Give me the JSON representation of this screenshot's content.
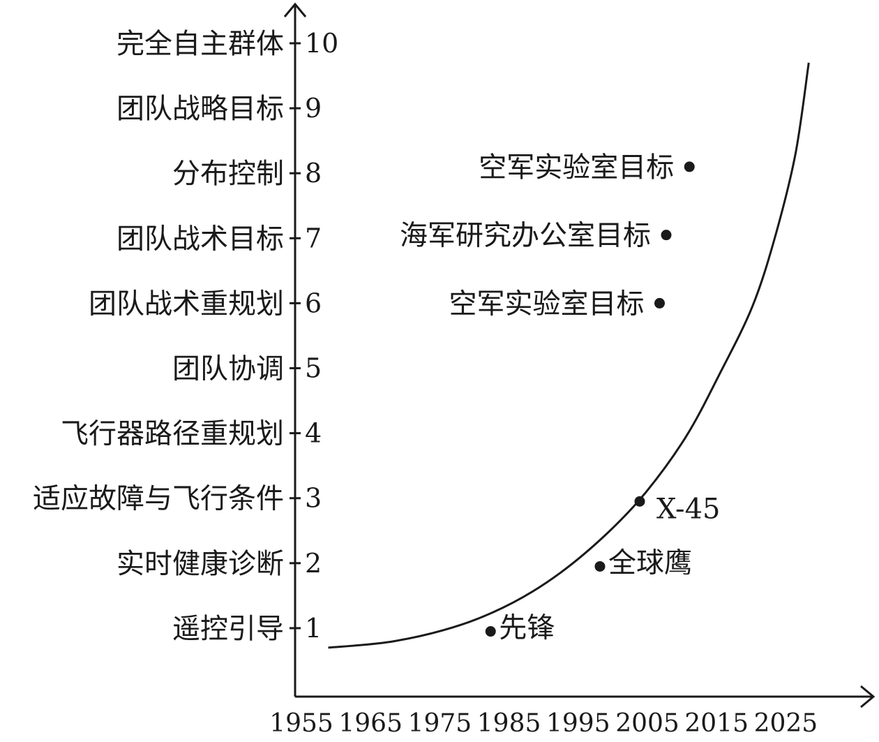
{
  "chart_data": {
    "type": "scatter",
    "title": "",
    "xlabel": "",
    "ylabel": "",
    "xlim": [
      1955,
      2035
    ],
    "ylim": [
      0,
      10
    ],
    "x_ticks": [
      "1955",
      "1965",
      "1975",
      "1985",
      "1995",
      "2005",
      "2015",
      "2025"
    ],
    "y_ticks": [
      {
        "value": 1,
        "tick": "1",
        "label": "遥控引导"
      },
      {
        "value": 2,
        "tick": "2",
        "label": "实时健康诊断"
      },
      {
        "value": 3,
        "tick": "3",
        "label": "适应故障与飞行条件"
      },
      {
        "value": 4,
        "tick": "4",
        "label": "飞行器路径重规划"
      },
      {
        "value": 5,
        "tick": "5",
        "label": "团队协调"
      },
      {
        "value": 6,
        "tick": "6",
        "label": "团队战术重规划"
      },
      {
        "value": 7,
        "tick": "7",
        "label": "团队战术目标"
      },
      {
        "value": 8,
        "tick": "8",
        "label": "分布控制"
      },
      {
        "value": 9,
        "tick": "9",
        "label": "团队战略目标"
      },
      {
        "value": 10,
        "tick": "10",
        "label": "完全自主群体"
      }
    ],
    "points": [
      {
        "x": 1984.5,
        "y": 0.95,
        "label": "先锋",
        "label_side": "right"
      },
      {
        "x": 2001,
        "y": 1.95,
        "label": "全球鹰",
        "label_side": "right"
      },
      {
        "x": 2007,
        "y": 2.95,
        "label": "X-45",
        "label_side": "right-below"
      },
      {
        "x": 2010,
        "y": 6.0,
        "label": "空军实验室目标",
        "label_side": "left"
      },
      {
        "x": 2011,
        "y": 7.05,
        "label": "海军研究办公室目标",
        "label_side": "left"
      },
      {
        "x": 2014.5,
        "y": 8.1,
        "label": "空军实验室目标",
        "label_side": "left"
      }
    ],
    "trend_curve": [
      {
        "x": 1960,
        "y": 0.7
      },
      {
        "x": 1970,
        "y": 0.8
      },
      {
        "x": 1980,
        "y": 1.05
      },
      {
        "x": 1988,
        "y": 1.4
      },
      {
        "x": 1995,
        "y": 1.85
      },
      {
        "x": 2002,
        "y": 2.45
      },
      {
        "x": 2008,
        "y": 3.1
      },
      {
        "x": 2014,
        "y": 3.95
      },
      {
        "x": 2019,
        "y": 4.9
      },
      {
        "x": 2024,
        "y": 5.95
      },
      {
        "x": 2027.5,
        "y": 7.05
      },
      {
        "x": 2030.5,
        "y": 8.3
      },
      {
        "x": 2032.5,
        "y": 9.7
      }
    ],
    "grid": false,
    "legend": "none"
  }
}
